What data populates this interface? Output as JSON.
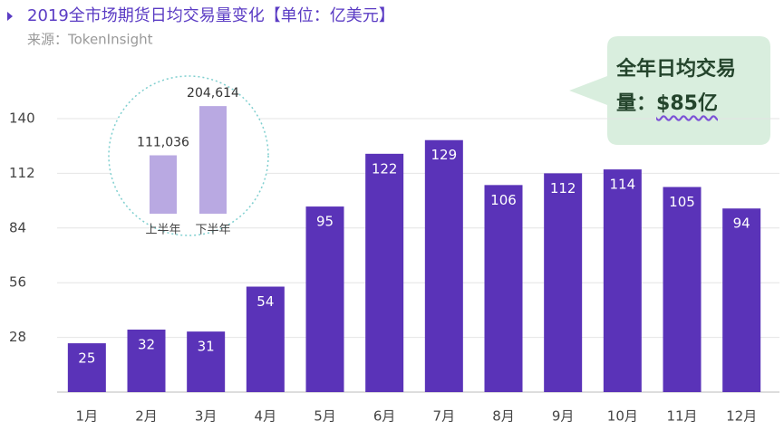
{
  "chart_data": [
    {
      "type": "bar",
      "title": "2019全市场期货日均交易量变化【单位：亿美元】",
      "subtitle": "来源：TokenInsight",
      "categories": [
        "1月",
        "2月",
        "3月",
        "4月",
        "5月",
        "6月",
        "7月",
        "8月",
        "9月",
        "10月",
        "11月",
        "12月"
      ],
      "values": [
        25,
        32,
        31,
        54,
        95,
        122,
        129,
        106,
        112,
        114,
        105,
        94
      ],
      "color": "#5a33b8",
      "ylim": [
        0,
        140
      ],
      "yticks": [
        28,
        56,
        84,
        112,
        140
      ],
      "grid": true,
      "annotation": {
        "label": "全年日均交易量：",
        "value": "$85亿"
      }
    },
    {
      "type": "bar",
      "categories": [
        "上半年",
        "下半年"
      ],
      "values": [
        111036,
        204614
      ],
      "value_labels": [
        "111,036",
        "204,614"
      ],
      "color": "#b9a9e2",
      "ylim": [
        0,
        210000
      ]
    }
  ]
}
